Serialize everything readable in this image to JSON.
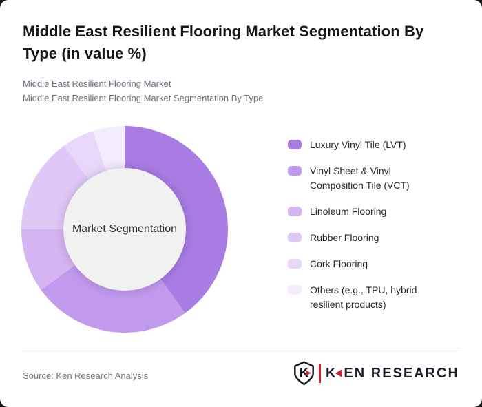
{
  "header": {
    "title": "Middle East Resilient Flooring Market Segmentation By Type (in value %)",
    "subtitle_line1": "Middle East Resilient Flooring Market",
    "subtitle_line2": "Middle East Resilient Flooring Market Segmentation By Type"
  },
  "chart_data": {
    "type": "pie",
    "style": "donut",
    "center_label": "Market Segmentation",
    "units": "value %",
    "start_angle_deg": 0,
    "direction": "clockwise",
    "legend_position": "right",
    "segments": [
      {
        "label": "Luxury Vinyl Tile (LVT)",
        "value": 40,
        "color": "#a87ce3"
      },
      {
        "label": "Vinyl Sheet & Vinyl Composition Tile (VCT)",
        "value": 25,
        "color": "#c09aec"
      },
      {
        "label": "Linoleum Flooring",
        "value": 10,
        "color": "#d5b5f1"
      },
      {
        "label": "Rubber Flooring",
        "value": 15,
        "color": "#dfc8f5"
      },
      {
        "label": "Cork Flooring",
        "value": 5,
        "color": "#e8d7f8"
      },
      {
        "label": "Others (e.g., TPU, hybrid resilient products)",
        "value": 5,
        "color": "#f3ecfc"
      }
    ],
    "hole_fill": "#f1f1f2"
  },
  "footer": {
    "source": "Source: Ken Research Analysis",
    "logo": {
      "shield_letter": "K",
      "brand_k": "K",
      "brand_rest": "EN RESEARCH",
      "accent_color": "#c0272d",
      "text_color": "#1c1d28"
    }
  }
}
